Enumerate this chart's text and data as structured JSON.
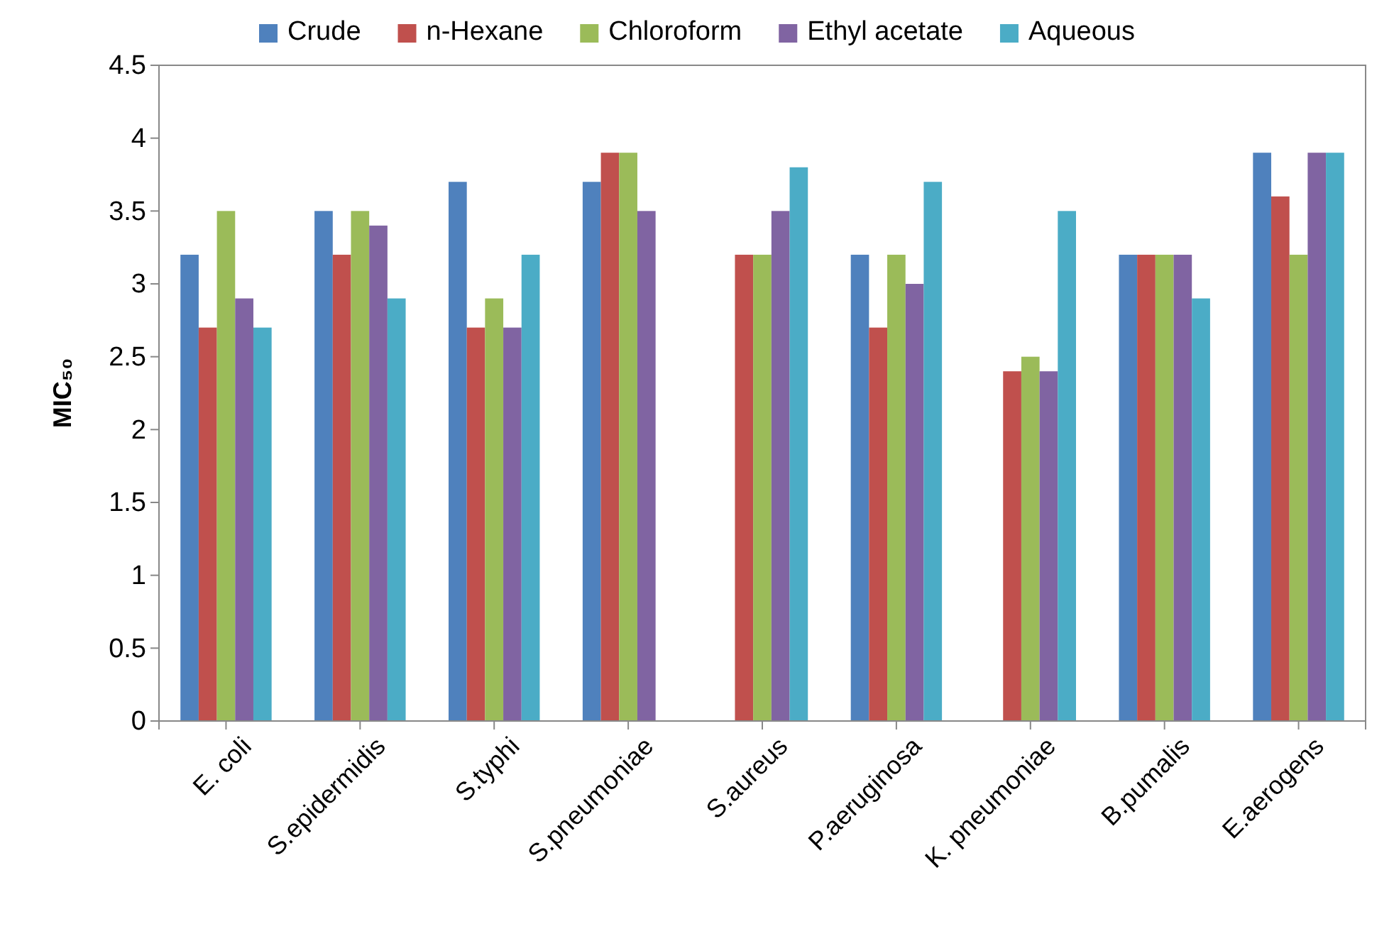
{
  "chart_data": {
    "type": "bar",
    "ylabel": "MIC₅₀",
    "categories": [
      "E. coli",
      "S.epidermidis",
      "S.typhi",
      "S.pneumoniae",
      "S.aureus",
      "P.aeruginosa",
      "K. pneumoniae",
      "B.pumalis",
      "E.aerogens"
    ],
    "series": [
      {
        "name": "Crude",
        "color": "#4f81bd",
        "values": [
          3.2,
          3.5,
          3.7,
          3.7,
          null,
          3.2,
          null,
          3.2,
          3.9
        ]
      },
      {
        "name": "n-Hexane",
        "color": "#c0504d",
        "values": [
          2.7,
          3.2,
          2.7,
          3.9,
          3.2,
          2.7,
          2.4,
          3.2,
          3.6
        ]
      },
      {
        "name": "Chloroform",
        "color": "#9bbb59",
        "values": [
          3.5,
          3.5,
          2.9,
          3.9,
          3.2,
          3.2,
          2.5,
          3.2,
          3.2
        ]
      },
      {
        "name": "Ethyl acetate",
        "color": "#8064a2",
        "values": [
          2.9,
          3.4,
          2.7,
          3.5,
          3.5,
          3.0,
          2.4,
          3.2,
          3.9
        ]
      },
      {
        "name": "Aqueous",
        "color": "#4bacc6",
        "values": [
          2.7,
          2.9,
          3.2,
          null,
          3.8,
          3.7,
          3.5,
          2.9,
          3.9
        ]
      }
    ],
    "ylim": [
      0,
      4.5
    ],
    "yticks": [
      0,
      {
        "value": 0.5,
        "label": "0.5"
      },
      1,
      {
        "value": 1.5,
        "label": "1.5"
      },
      2,
      {
        "value": 2.5,
        "label": "2.5"
      },
      3,
      {
        "value": 3.5,
        "label": "3.5"
      },
      4,
      {
        "value": 4.5,
        "label": "4.5"
      }
    ],
    "legend": "top",
    "grid": false
  }
}
